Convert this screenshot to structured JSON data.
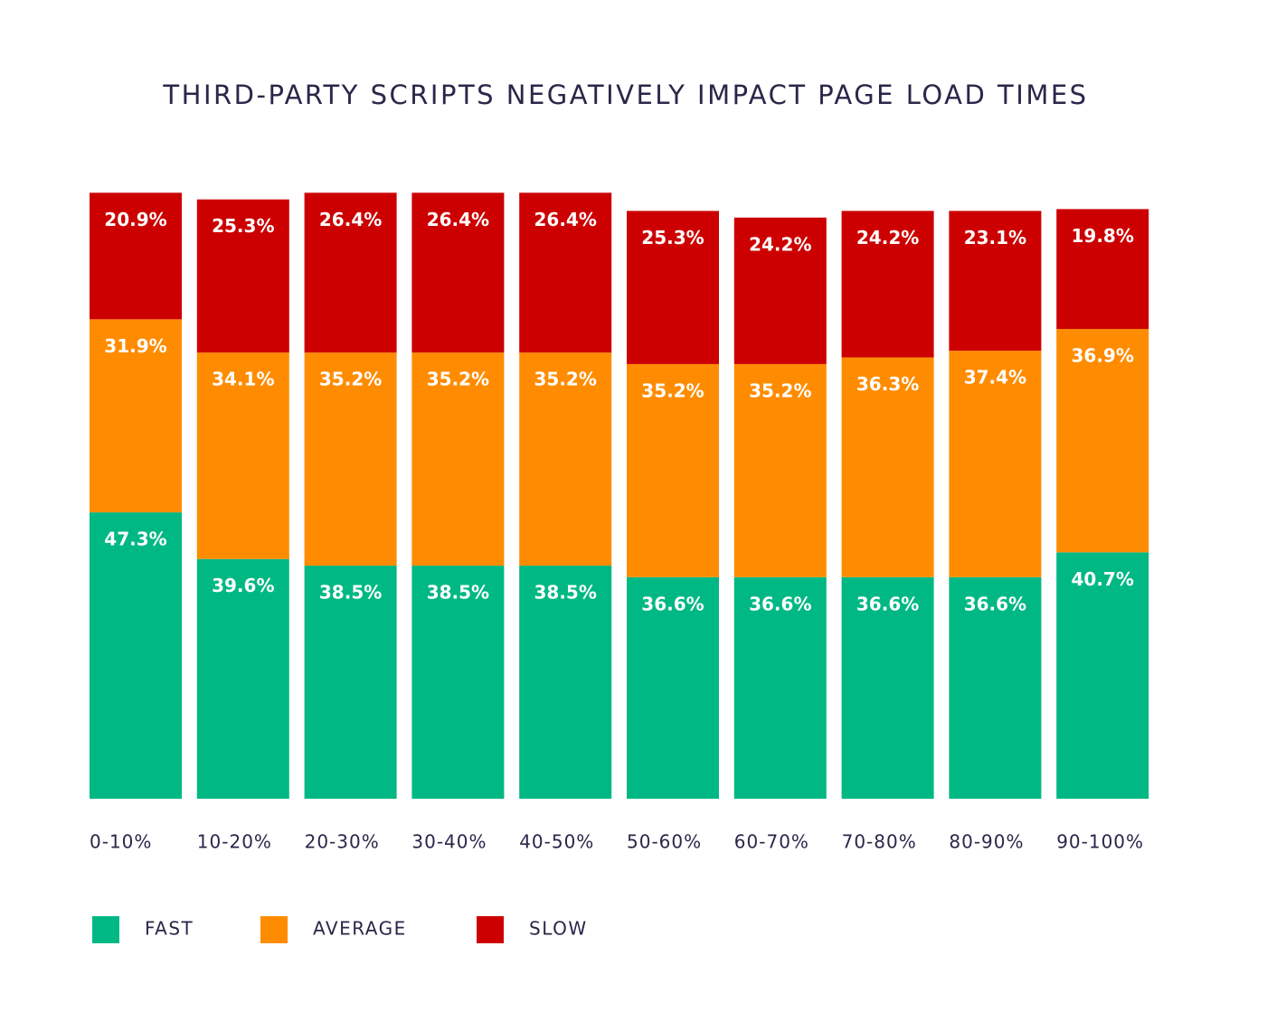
{
  "chart_data": {
    "type": "stacked_bar",
    "title": "THIRD-PARTY SCRIPTS NEGATIVELY IMPACT PAGE LOAD TIMES",
    "categories": [
      "0-10%",
      "10-20%",
      "20-30%",
      "30-40%",
      "40-50%",
      "50-60%",
      "60-70%",
      "70-80%",
      "80-90%",
      "90-100%"
    ],
    "series": [
      {
        "name": "FAST",
        "color": "#00b884",
        "values": [
          47.3,
          39.6,
          38.5,
          38.5,
          38.5,
          36.6,
          36.6,
          36.6,
          36.6,
          40.7
        ],
        "value_labels": [
          "47.3%",
          "39.6%",
          "38.5%",
          "38.5%",
          "38.5%",
          "36.6%",
          "36.6%",
          "36.6%",
          "36.6%",
          "40.7%"
        ]
      },
      {
        "name": "AVERAGE",
        "color": "#ff8c00",
        "values": [
          31.9,
          34.1,
          35.2,
          35.2,
          35.2,
          35.2,
          35.2,
          36.3,
          37.4,
          36.9
        ],
        "value_labels": [
          "31.9%",
          "34.1%",
          "35.2%",
          "35.2%",
          "35.2%",
          "35.2%",
          "35.2%",
          "36.3%",
          "37.4%",
          "36.9%"
        ]
      },
      {
        "name": "SLOW",
        "color": "#cc0000",
        "values": [
          20.9,
          25.3,
          26.4,
          26.4,
          26.4,
          25.3,
          24.2,
          24.2,
          23.1,
          19.8
        ],
        "value_labels": [
          "20.9%",
          "25.3%",
          "26.4%",
          "26.4%",
          "26.4%",
          "25.3%",
          "24.2%",
          "24.2%",
          "23.1%",
          "19.8%"
        ]
      }
    ],
    "ylim": [
      0,
      100
    ]
  }
}
